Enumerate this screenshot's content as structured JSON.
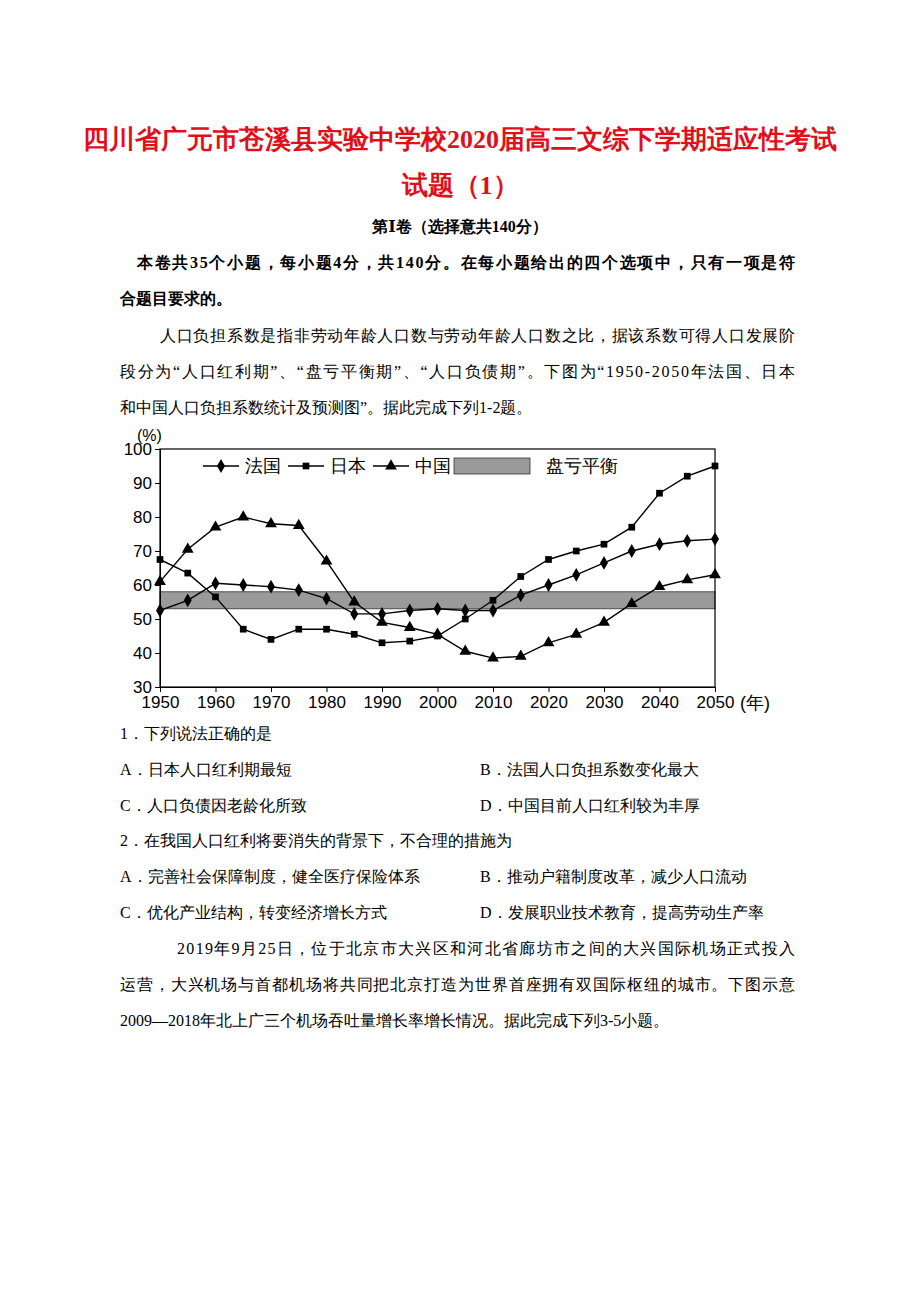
{
  "header": {
    "title_lines": [
      "四川省广元市苍溪县实验中学校2020届高三文综下学期适应性考试",
      "试题（1）"
    ],
    "section": "第Ⅰ卷（选择意共140分）"
  },
  "instructions": [
    "本卷共35个小题，每小题4分，共140分。在每小题给出的四个选项中，只有一项是符",
    "合题目要求的。"
  ],
  "passage1": [
    "人口负担系数是指非劳动年龄人口数与劳动年龄人口数之比，据该系数可得人口发展阶",
    "段分为“人口红利期”、“盘亏平衡期”、“人口负债期”。下图为“1950-2050年法国、日本",
    "和中国人口负担系数统计及预测图”。据此完成下列1-2题。"
  ],
  "chart_data": {
    "type": "line",
    "y_label": "(%)",
    "x_label": "(年)",
    "x": [
      1950,
      1955,
      1960,
      1965,
      1970,
      1975,
      1980,
      1985,
      1990,
      1995,
      2000,
      2005,
      2010,
      2015,
      2020,
      2025,
      2030,
      2035,
      2040,
      2045,
      2050
    ],
    "series": [
      {
        "name": "法国",
        "color": "#000000",
        "marker": "diamond",
        "values": [
          52.5,
          55.5,
          60.5,
          60,
          59.5,
          58.5,
          56,
          51.5,
          51.5,
          52.5,
          53,
          52.5,
          52.5,
          57,
          60,
          63,
          66.5,
          70,
          72,
          73,
          73.5
        ]
      },
      {
        "name": "日本",
        "color": "#000000",
        "marker": "square",
        "values": [
          67.5,
          63.5,
          56.5,
          47,
          44,
          47,
          47,
          45.5,
          43,
          43.5,
          45,
          50,
          55.5,
          62.5,
          67.5,
          70,
          72,
          77,
          87,
          92,
          95
        ]
      },
      {
        "name": "中国",
        "color": "#000000",
        "marker": "triangle",
        "values": [
          61,
          70.5,
          77,
          80,
          78,
          77.5,
          67,
          55,
          49,
          47.5,
          45.5,
          40.5,
          38.5,
          39,
          43,
          45.5,
          49,
          54.5,
          59.5,
          61.5,
          63
        ]
      }
    ],
    "band": {
      "name": "盘亏平衡",
      "low": 53,
      "high": 58,
      "color": "#9a9a9a"
    },
    "xlim": [
      1950,
      2050
    ],
    "xticks": [
      1950,
      1960,
      1970,
      1980,
      1990,
      2000,
      2010,
      2020,
      2030,
      2040,
      2050
    ],
    "ylim": [
      30,
      100
    ],
    "yticks": [
      30,
      40,
      50,
      60,
      70,
      80,
      90,
      100
    ],
    "legend": "top",
    "grid": false
  },
  "questions": [
    {
      "stem": "1．下列说法正确的是",
      "options": [
        "A．日本人口红利期最短",
        "B．法国人口负担系数变化最大",
        "C．人口负债因老龄化所致",
        "D．中国目前人口红利较为丰厚"
      ]
    },
    {
      "stem": "2．在我国人口红利将要消失的背景下，不合理的措施为",
      "options": [
        "A．完善社会保障制度，健全医疗保险体系",
        "B．推动户籍制度改革，减少人口流动",
        "C．优化产业结构，转变经济增长方式",
        "D．发展职业技术教育，提高劳动生产率"
      ]
    }
  ],
  "passage2": [
    "2019年9月25日，位于北京市大兴区和河北省廊坊市之间的大兴国际机场正式投入",
    "运营，大兴机场与首都机场将共同把北京打造为世界首座拥有双国际枢纽的城市。下图示意",
    "2009—2018年北上广三个机场吞吐量增长率增长情况。据此完成下列3-5小题。"
  ]
}
